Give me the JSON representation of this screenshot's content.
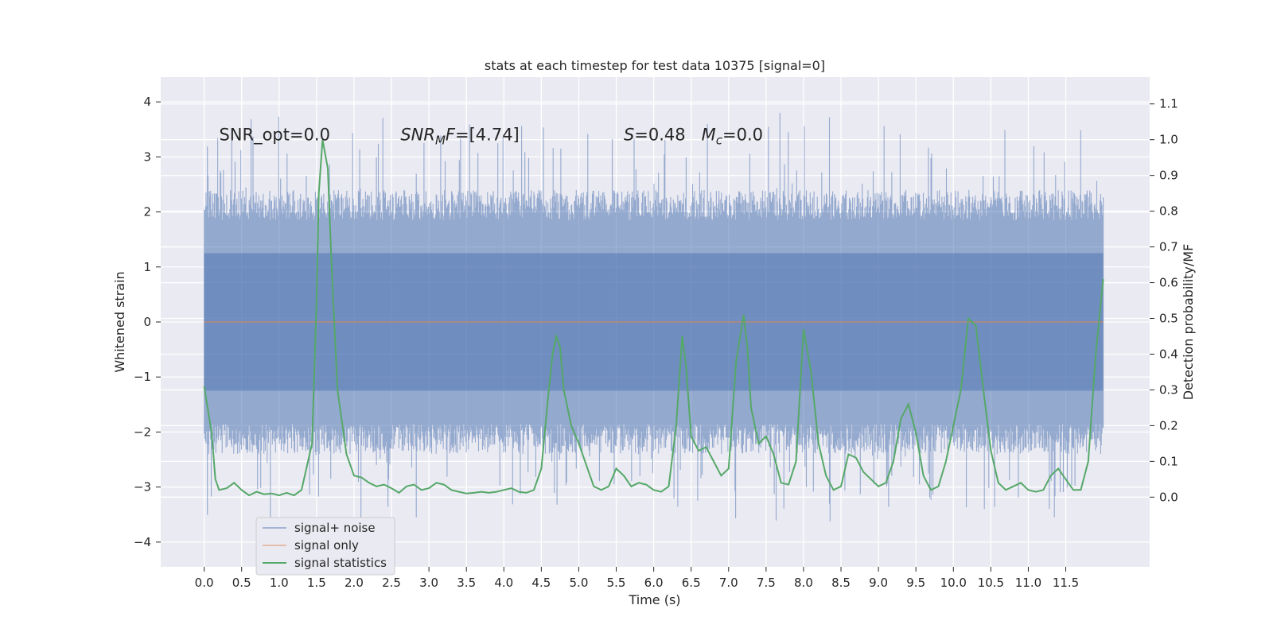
{
  "chart_data": {
    "type": "line",
    "title": "stats at each timestep for test data 10375 [signal=0]",
    "xlabel": "Time (s)",
    "ylabel": "Whitened strain",
    "ylabel_right": "Detection probability/MF",
    "xlim": [
      -0.58,
      12.62
    ],
    "ylim": [
      -4.45,
      4.45
    ],
    "ylim_right": [
      -0.195,
      1.175
    ],
    "xticks": [
      0.0,
      0.5,
      1.0,
      1.5,
      2.0,
      2.5,
      3.0,
      3.5,
      4.0,
      4.5,
      5.0,
      5.5,
      6.0,
      6.5,
      7.0,
      7.5,
      8.0,
      8.5,
      9.0,
      9.5,
      10.0,
      10.5,
      11.0,
      11.5
    ],
    "xtick_labels": [
      "0.0",
      "0.5",
      "1.0",
      "1.5",
      "2.0",
      "2.5",
      "3.0",
      "3.5",
      "4.0",
      "4.5",
      "5.0",
      "5.5",
      "6.0",
      "6.5",
      "7.0",
      "7.5",
      "8.0",
      "8.5",
      "9.0",
      "9.5",
      "10.0",
      "10.5",
      "11.0",
      "11.5"
    ],
    "yticks": [
      -4,
      -3,
      -2,
      -1,
      0,
      1,
      2,
      3,
      4
    ],
    "ytick_labels": [
      "−4",
      "−3",
      "−2",
      "−1",
      "0",
      "1",
      "2",
      "3",
      "4"
    ],
    "yticks_right": [
      0.0,
      0.1,
      0.2,
      0.3,
      0.4,
      0.5,
      0.6,
      0.7,
      0.8,
      0.9,
      1.0,
      1.1
    ],
    "ytick_labels_right": [
      "0.0",
      "0.1",
      "0.2",
      "0.3",
      "0.4",
      "0.5",
      "0.6",
      "0.7",
      "0.8",
      "0.9",
      "1.0",
      "1.1"
    ],
    "legend": [
      "signal+ noise",
      "signal only",
      "signal statistics"
    ],
    "legend_position": "lower-left",
    "annotations": [
      {
        "text": "SNR_opt=0.0",
        "x": 0.2,
        "y": 3.3
      },
      {
        "text": "SNR_MF=[4.74]",
        "x": 2.62,
        "y": 3.3
      },
      {
        "text": "S=0.48   M_c=0.0",
        "x": 5.6,
        "y": 3.3
      }
    ],
    "series": [
      {
        "name": "signal+ noise",
        "axis": "left",
        "color": "#4c72b0",
        "t_range": [
          0.0,
          12.0
        ],
        "description": "whitened strain noise, dense band roughly between -2.5 and 2.5 with spikes to about ±4"
      },
      {
        "name": "signal only",
        "axis": "left",
        "color": "#dd8452",
        "x": [
          0.0,
          12.0
        ],
        "y": [
          0.0,
          0.0
        ]
      },
      {
        "name": "signal statistics",
        "axis": "right",
        "color": "#55a868",
        "x": [
          0.0,
          0.1,
          0.15,
          0.2,
          0.3,
          0.4,
          0.5,
          0.6,
          0.7,
          0.8,
          0.9,
          1.0,
          1.1,
          1.2,
          1.3,
          1.44,
          1.5,
          1.53,
          1.58,
          1.65,
          1.7,
          1.78,
          1.9,
          2.0,
          2.1,
          2.2,
          2.3,
          2.4,
          2.5,
          2.6,
          2.7,
          2.8,
          2.9,
          3.0,
          3.1,
          3.2,
          3.3,
          3.4,
          3.5,
          3.6,
          3.7,
          3.8,
          3.9,
          4.0,
          4.1,
          4.2,
          4.3,
          4.4,
          4.5,
          4.6,
          4.65,
          4.7,
          4.75,
          4.8,
          4.9,
          5.0,
          5.1,
          5.2,
          5.3,
          5.4,
          5.5,
          5.6,
          5.7,
          5.8,
          5.9,
          6.0,
          6.1,
          6.2,
          6.3,
          6.38,
          6.43,
          6.5,
          6.6,
          6.7,
          6.8,
          6.9,
          7.0,
          7.1,
          7.2,
          7.25,
          7.3,
          7.4,
          7.5,
          7.6,
          7.7,
          7.8,
          7.9,
          8.0,
          8.1,
          8.2,
          8.3,
          8.4,
          8.5,
          8.6,
          8.7,
          8.8,
          8.9,
          9.0,
          9.1,
          9.2,
          9.3,
          9.4,
          9.5,
          9.6,
          9.7,
          9.8,
          9.9,
          10.0,
          10.1,
          10.2,
          10.3,
          10.4,
          10.5,
          10.6,
          10.7,
          10.8,
          10.9,
          11.0,
          11.1,
          11.2,
          11.3,
          11.4,
          11.5,
          11.6,
          11.7,
          11.8,
          11.9,
          12.0
        ],
        "y": [
          0.31,
          0.18,
          0.05,
          0.02,
          0.025,
          0.04,
          0.02,
          0.005,
          0.015,
          0.008,
          0.01,
          0.005,
          0.012,
          0.005,
          0.02,
          0.15,
          0.55,
          0.85,
          1.0,
          0.92,
          0.65,
          0.3,
          0.12,
          0.06,
          0.055,
          0.04,
          0.03,
          0.035,
          0.025,
          0.012,
          0.03,
          0.035,
          0.02,
          0.025,
          0.04,
          0.035,
          0.02,
          0.015,
          0.01,
          0.012,
          0.015,
          0.012,
          0.015,
          0.02,
          0.025,
          0.015,
          0.012,
          0.02,
          0.08,
          0.3,
          0.4,
          0.45,
          0.42,
          0.3,
          0.2,
          0.15,
          0.09,
          0.03,
          0.02,
          0.03,
          0.08,
          0.06,
          0.03,
          0.04,
          0.035,
          0.02,
          0.015,
          0.03,
          0.2,
          0.45,
          0.37,
          0.17,
          0.13,
          0.14,
          0.1,
          0.06,
          0.08,
          0.38,
          0.51,
          0.42,
          0.25,
          0.15,
          0.17,
          0.12,
          0.04,
          0.035,
          0.1,
          0.47,
          0.35,
          0.15,
          0.06,
          0.02,
          0.03,
          0.12,
          0.11,
          0.07,
          0.05,
          0.03,
          0.04,
          0.1,
          0.22,
          0.26,
          0.18,
          0.06,
          0.02,
          0.03,
          0.1,
          0.2,
          0.3,
          0.5,
          0.48,
          0.3,
          0.13,
          0.04,
          0.02,
          0.03,
          0.04,
          0.02,
          0.015,
          0.02,
          0.06,
          0.08,
          0.05,
          0.02,
          0.02,
          0.1,
          0.4,
          0.61
        ]
      }
    ]
  }
}
